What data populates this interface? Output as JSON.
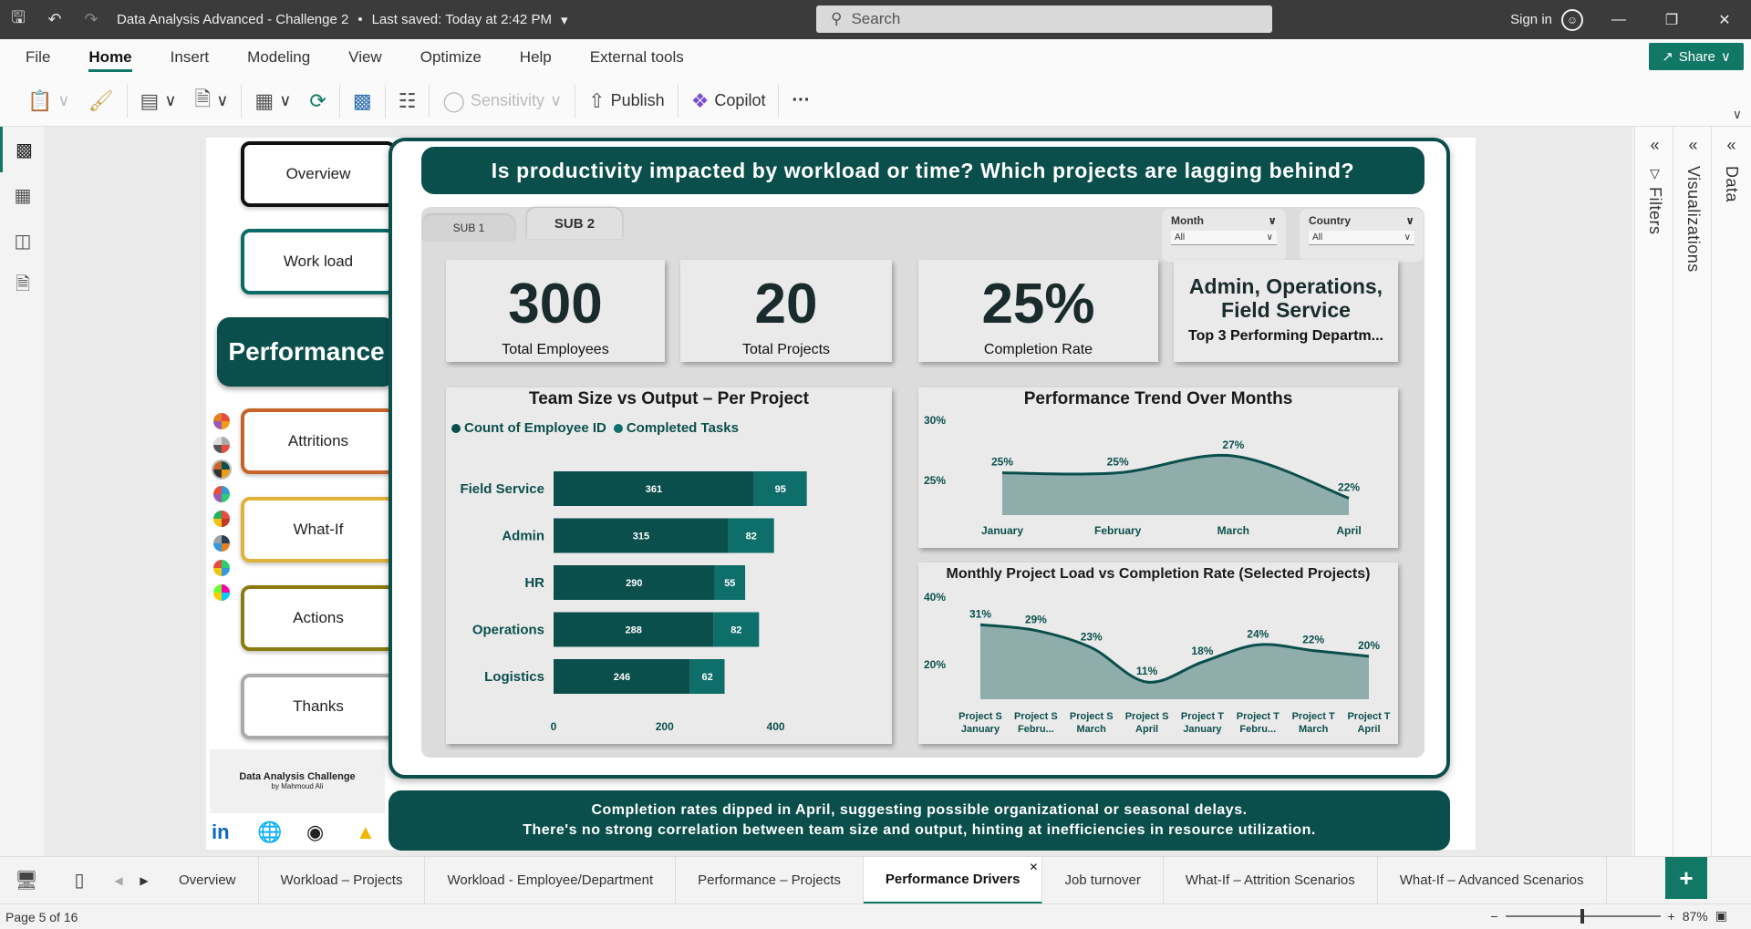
{
  "window": {
    "title": "Data Analysis Advanced - Challenge 2",
    "saved": "Last saved: Today at 2:42 PM",
    "search_placeholder": "Search",
    "signin": "Sign in"
  },
  "menu": [
    "File",
    "Home",
    "Insert",
    "Modeling",
    "View",
    "Optimize",
    "Help",
    "External tools"
  ],
  "menu_active": "Home",
  "share_label": "Share",
  "ribbon": {
    "sensitivity": "Sensitivity",
    "publish": "Publish",
    "copilot": "Copilot",
    "more": "···"
  },
  "panels": {
    "filters": "Filters",
    "visualizations": "Visualizations",
    "data": "Data"
  },
  "nav": {
    "overview": "Overview",
    "workload": "Work load",
    "performance": "Performance",
    "attritions": "Attritions",
    "whatif": "What-If",
    "actions": "Actions",
    "thanks": "Thanks"
  },
  "credit": {
    "title": "Data Analysis Challenge",
    "author": "by Mahmoud Ali"
  },
  "headline": "Is productivity impacted by workload or time? Which projects are lagging behind?",
  "subtabs": [
    "SUB 1",
    "SUB 2"
  ],
  "slicers": [
    {
      "label": "Month",
      "value": "All"
    },
    {
      "label": "Country",
      "value": "All"
    }
  ],
  "kpis": {
    "employees": {
      "value": "300",
      "label": "Total Employees"
    },
    "projects": {
      "value": "20",
      "label": "Total Projects"
    },
    "completion": {
      "value": "25%",
      "label": "Completion Rate"
    },
    "top_depts": {
      "value": "Admin, Operations, Field Service",
      "label": "Top 3 Performing Departm..."
    }
  },
  "insight": {
    "line1": "Completion rates dipped in April, suggesting possible organizational or seasonal delays.",
    "line2": "There's no strong correlation between team size and output, hinting at inefficiencies in resource utilization."
  },
  "colors": {
    "dark_teal": "#0b4f4c",
    "teal": "#0e6e6a",
    "area_fill": "#8fadab",
    "accent": "#117865"
  },
  "chart_data": [
    {
      "type": "bar",
      "title": "Team Size vs Output – Per Project",
      "categories": [
        "Field Service",
        "Admin",
        "HR",
        "Operations",
        "Logistics"
      ],
      "series": [
        {
          "name": "Count of Employee ID",
          "values": [
            361,
            315,
            290,
            288,
            246
          ]
        },
        {
          "name": "Completed Tasks",
          "values": [
            95,
            82,
            55,
            82,
            62
          ]
        }
      ],
      "stacked": true,
      "orientation": "horizontal",
      "xlim": [
        0,
        450
      ],
      "xticks": [
        "0",
        "200",
        "400"
      ]
    },
    {
      "type": "area",
      "title": "Performance Trend Over Months",
      "categories": [
        "January",
        "February",
        "March",
        "April"
      ],
      "values": [
        25,
        25,
        27,
        22
      ],
      "labels": [
        "25%",
        "25%",
        "27%",
        "22%"
      ],
      "yticks": [
        "30%",
        "25%"
      ],
      "ylim": [
        20,
        31
      ]
    },
    {
      "type": "area",
      "title": "Monthly Project Load vs Completion Rate (Selected Projects)",
      "categories": [
        [
          "Project S",
          "January"
        ],
        [
          "Project S",
          "Febru..."
        ],
        [
          "Project S",
          "March"
        ],
        [
          "Project S",
          "April"
        ],
        [
          "Project T",
          "January"
        ],
        [
          "Project T",
          "Febru..."
        ],
        [
          "Project T",
          "March"
        ],
        [
          "Project T",
          "April"
        ]
      ],
      "values": [
        31,
        29,
        23,
        11,
        18,
        24,
        22,
        20
      ],
      "labels": [
        "31%",
        "29%",
        "23%",
        "11%",
        "18%",
        "24%",
        "22%",
        "20%"
      ],
      "yticks": [
        "40%",
        "20%"
      ],
      "ylim": [
        5,
        40
      ]
    }
  ],
  "pagetabs": [
    "Overview",
    "Workload – Projects",
    "Workload - Employee/Department",
    "Performance – Projects",
    "Performance Drivers",
    "Job turnover",
    "What-If – Attrition Scenarios",
    "What-If – Advanced Scenarios"
  ],
  "pagetab_active": "Performance Drivers",
  "status": {
    "page": "Page 5 of 16",
    "zoom": "87%"
  }
}
